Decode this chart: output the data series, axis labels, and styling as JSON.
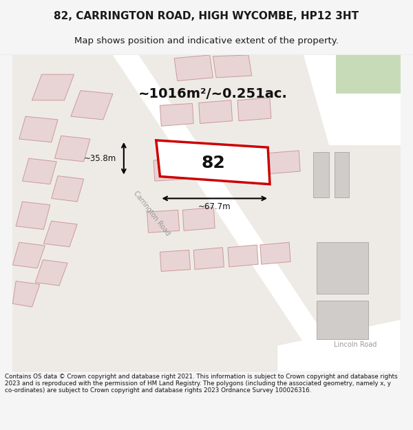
{
  "title": "82, CARRINGTON ROAD, HIGH WYCOMBE, HP12 3HT",
  "subtitle": "Map shows position and indicative extent of the property.",
  "footer": "Contains OS data © Crown copyright and database right 2021. This information is subject to Crown copyright and database rights 2023 and is reproduced with the permission of HM Land Registry. The polygons (including the associated geometry, namely x, y co-ordinates) are subject to Crown copyright and database rights 2023 Ordnance Survey 100026316.",
  "area_text": "~1016m²/~0.251ac.",
  "width_label": "~67.7m",
  "height_label": "~35.8m",
  "property_number": "82",
  "bg_color": "#f0eeeb",
  "map_bg": "#f0eeeb",
  "road_color": "#ffffff",
  "building_fill": "#d4cfc9",
  "building_stroke": "#c0bab4",
  "property_stroke": "#cc0000",
  "property_fill": "#ffffff",
  "street_label_color": "#888888",
  "title_color": "#1a1a1a",
  "footer_bg": "#ffffff"
}
